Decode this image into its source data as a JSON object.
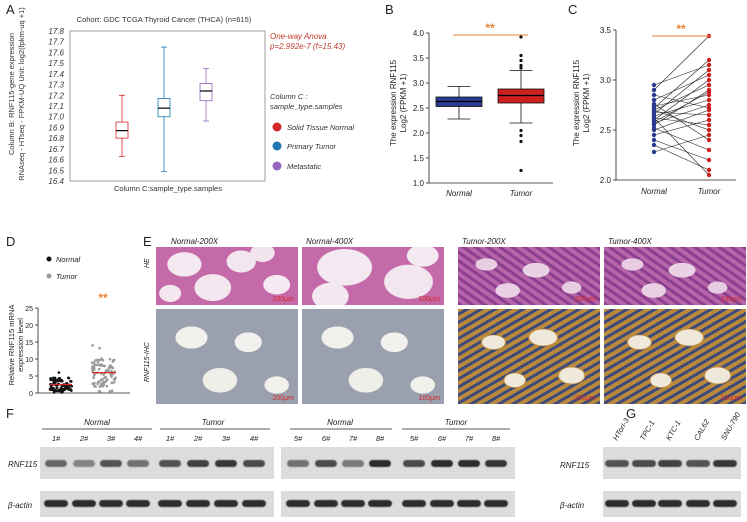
{
  "panel_letters": [
    "A",
    "B",
    "C",
    "D",
    "E",
    "F",
    "G"
  ],
  "colors": {
    "normal_box": "#2b3a8f",
    "tumor_box": "#cc1f1f",
    "sig": "#e8823a",
    "anova": "#c0392b",
    "red_dot": "#d62728",
    "blue_dot": "#1f77b4",
    "purple_dot": "#9467bd"
  },
  "panelA": {
    "title": "Cohort: GDC TCGA Thyroid Cancer (THCA) (n=615)",
    "ylabel_line1": "Column B: RNF115-gene expression",
    "ylabel_line2": "RNAseq - HTseq - FPKM-UQ Unit: log2(fpkm-uq +1)",
    "xlabel": "Column C:sample_type.samples",
    "anova_line1": "One-way Anova",
    "anova_line2": "p=2.992e-7 (f=15.43)",
    "legend_title_line1": "Column C :",
    "legend_title_line2": "sample_type.samples",
    "legend": [
      "Solid Tissue Normal",
      "Primary Tumor",
      "Metastatic"
    ]
  },
  "panelB": {
    "ylabel_line1": "The expression RNF115",
    "ylabel_line2": "Log2 (FPKM +1)",
    "sig": "**"
  },
  "panelC": {
    "ylabel_line1": "The expression RNF115",
    "ylabel_line2": "Log2 (FPKM +1)",
    "sig": "**"
  },
  "panelD": {
    "legend": [
      "Normal",
      "Tumor"
    ],
    "ylabel_line1": "Relative RNF115 mRNA",
    "ylabel_line2": "expression level",
    "sig": "**"
  },
  "panelE": {
    "titles": [
      "Normal-200X",
      "Normal-400X",
      "Tumor-200X",
      "Tumor-400X"
    ],
    "row_labels": [
      "HE",
      "RNF115-IHC"
    ],
    "scale_he": [
      "200μm",
      "100μm",
      "200μm",
      "100μm"
    ],
    "scale_ihc": [
      "200μm",
      "100μm",
      "200μm",
      "100μm"
    ]
  },
  "panelF": {
    "groups": [
      "Normal",
      "Tumor",
      "Normal",
      "Tumor"
    ],
    "lanes_left": [
      "1#",
      "2#",
      "3#",
      "4#",
      "1#",
      "2#",
      "3#",
      "4#"
    ],
    "lanes_right": [
      "5#",
      "6#",
      "7#",
      "8#",
      "5#",
      "6#",
      "7#",
      "8#"
    ],
    "rows": [
      "RNF115",
      "β-actin"
    ]
  },
  "panelG": {
    "lanes": [
      "HTori-3",
      "TPC-1",
      "KTC-1",
      "CAL62",
      "SNU-790"
    ],
    "rows": [
      "RNF115",
      "β-actin"
    ]
  },
  "chart_data": [
    {
      "type": "box",
      "panel": "A",
      "title": "Cohort: GDC TCGA Thyroid Cancer (THCA) (n=615)",
      "ylim": [
        16.4,
        17.8
      ],
      "yticks": [
        16.4,
        16.5,
        16.6,
        16.7,
        16.8,
        16.9,
        17.0,
        17.1,
        17.2,
        17.3,
        17.4,
        17.5,
        17.6,
        17.7,
        17.8
      ],
      "series": [
        {
          "name": "Solid Tissue Normal",
          "min": 16.63,
          "q1": 16.8,
          "median": 16.87,
          "q3": 16.95,
          "max": 17.2
        },
        {
          "name": "Primary Tumor",
          "min": 16.49,
          "q1": 17.0,
          "median": 17.08,
          "q3": 17.17,
          "max": 17.65
        },
        {
          "name": "Metastatic",
          "min": 16.96,
          "q1": 17.15,
          "median": 17.24,
          "q3": 17.31,
          "max": 17.45
        }
      ]
    },
    {
      "type": "box",
      "panel": "B",
      "categories": [
        "Normal",
        "Tumor"
      ],
      "ylim": [
        1.0,
        4.0
      ],
      "yticks": [
        "1.0",
        "1.5",
        "2.0",
        "2.5",
        "3.0",
        "3.5",
        "4.0"
      ],
      "series": [
        {
          "name": "Normal",
          "min": 2.28,
          "q1": 2.53,
          "median": 2.63,
          "q3": 2.72,
          "max": 2.93
        },
        {
          "name": "Tumor",
          "min": 2.2,
          "q1": 2.6,
          "median": 2.75,
          "q3": 2.88,
          "max": 3.25,
          "outliers": [
            3.3,
            3.35,
            3.45,
            3.55,
            3.92,
            2.05,
            1.95,
            1.83,
            1.25
          ]
        }
      ]
    },
    {
      "type": "paired",
      "panel": "C",
      "categories": [
        "Normal",
        "Tumor"
      ],
      "ylim": [
        2.0,
        3.5
      ],
      "yticks": [
        "2.0",
        "2.5",
        "3.0",
        "3.5"
      ],
      "pairs": [
        [
          2.28,
          2.45
        ],
        [
          2.35,
          2.1
        ],
        [
          2.4,
          2.2
        ],
        [
          2.45,
          2.6
        ],
        [
          2.5,
          2.7
        ],
        [
          2.52,
          2.3
        ],
        [
          2.55,
          2.9
        ],
        [
          2.57,
          2.75
        ],
        [
          2.6,
          3.0
        ],
        [
          2.62,
          2.55
        ],
        [
          2.64,
          2.8
        ],
        [
          2.66,
          3.1
        ],
        [
          2.68,
          2.65
        ],
        [
          2.7,
          2.95
        ],
        [
          2.72,
          3.2
        ],
        [
          2.74,
          2.85
        ],
        [
          2.76,
          2.4
        ],
        [
          2.8,
          3.05
        ],
        [
          2.85,
          2.72
        ],
        [
          2.9,
          3.44
        ],
        [
          2.95,
          3.15
        ],
        [
          2.62,
          2.05
        ],
        [
          2.58,
          2.88
        ],
        [
          2.7,
          2.5
        ]
      ]
    },
    {
      "type": "scatter",
      "panel": "D",
      "categories": [
        "Normal",
        "Tumor"
      ],
      "ylim": [
        0,
        25
      ],
      "yticks": [
        0,
        5,
        10,
        15,
        20,
        25
      ],
      "means": [
        2.5,
        6.0
      ]
    }
  ]
}
